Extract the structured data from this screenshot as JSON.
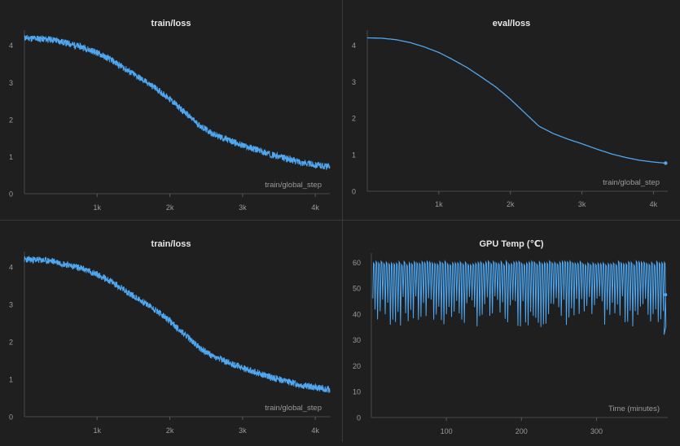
{
  "colors": {
    "line": "#4ea7f0",
    "axis": "#9a9a9a",
    "text": "#cfcfcf",
    "grid": "#2a2a2a",
    "bg": "#1f1f1f"
  },
  "chart_data": [
    {
      "id": "train-loss-top",
      "type": "line",
      "title": "train/loss",
      "xlabel": "train/global_step",
      "ylabel": "",
      "xlim": [
        0,
        4200
      ],
      "ylim": [
        0,
        4.3
      ],
      "xticks": [
        1000,
        2000,
        3000,
        4000
      ],
      "xtick_labels": [
        "1k",
        "2k",
        "3k",
        "4k"
      ],
      "yticks": [
        0,
        1,
        2,
        3,
        4
      ],
      "noise": 0.09,
      "series": [
        {
          "x": [
            0,
            200,
            400,
            600,
            800,
            1000,
            1200,
            1400,
            1600,
            1800,
            2000,
            2200,
            2400,
            2600,
            2800,
            3000,
            3200,
            3400,
            3600,
            3800,
            4000,
            4200
          ],
          "y": [
            4.2,
            4.18,
            4.15,
            4.05,
            3.95,
            3.8,
            3.6,
            3.35,
            3.1,
            2.85,
            2.55,
            2.2,
            1.85,
            1.6,
            1.45,
            1.3,
            1.18,
            1.05,
            0.95,
            0.85,
            0.78,
            0.72
          ]
        }
      ]
    },
    {
      "id": "eval-loss",
      "type": "line",
      "title": "eval/loss",
      "xlabel": "train/global_step",
      "ylabel": "",
      "xlim": [
        0,
        4200
      ],
      "ylim": [
        0,
        4.3
      ],
      "xticks": [
        1000,
        2000,
        3000,
        4000
      ],
      "xtick_labels": [
        "1k",
        "2k",
        "3k",
        "4k"
      ],
      "yticks": [
        0,
        1,
        2,
        3,
        4
      ],
      "noise": 0,
      "series": [
        {
          "x": [
            0,
            200,
            400,
            600,
            800,
            1000,
            1200,
            1400,
            1600,
            1800,
            2000,
            2200,
            2400,
            2600,
            2800,
            3000,
            3200,
            3400,
            3600,
            3800,
            4000,
            4170
          ],
          "y": [
            4.2,
            4.19,
            4.15,
            4.07,
            3.95,
            3.8,
            3.6,
            3.38,
            3.12,
            2.85,
            2.52,
            2.15,
            1.78,
            1.58,
            1.43,
            1.3,
            1.16,
            1.03,
            0.93,
            0.85,
            0.8,
            0.77
          ]
        }
      ]
    },
    {
      "id": "train-loss-bottom",
      "type": "line",
      "title": "train/loss",
      "xlabel": "train/global_step",
      "ylabel": "",
      "xlim": [
        0,
        4200
      ],
      "ylim": [
        0,
        4.3
      ],
      "xticks": [
        1000,
        2000,
        3000,
        4000
      ],
      "xtick_labels": [
        "1k",
        "2k",
        "3k",
        "4k"
      ],
      "yticks": [
        0,
        1,
        2,
        3,
        4
      ],
      "noise": 0.09,
      "series": [
        {
          "x": [
            0,
            200,
            400,
            600,
            800,
            1000,
            1200,
            1400,
            1600,
            1800,
            2000,
            2200,
            2400,
            2600,
            2800,
            3000,
            3200,
            3400,
            3600,
            3800,
            4000,
            4200
          ],
          "y": [
            4.2,
            4.18,
            4.15,
            4.05,
            3.95,
            3.8,
            3.6,
            3.35,
            3.1,
            2.85,
            2.55,
            2.2,
            1.85,
            1.6,
            1.45,
            1.3,
            1.18,
            1.05,
            0.95,
            0.85,
            0.78,
            0.72
          ]
        }
      ]
    },
    {
      "id": "gpu-temp",
      "type": "line",
      "title": "GPU Temp (℃)",
      "xlabel": "Time (minutes)",
      "ylabel": "",
      "xlim": [
        0,
        395
      ],
      "ylim": [
        0,
        62
      ],
      "xticks": [
        100,
        200,
        300
      ],
      "xtick_labels": [
        "100",
        "200",
        "300"
      ],
      "yticks": [
        0,
        10,
        20,
        30,
        40,
        50,
        60
      ],
      "oscillation": {
        "x_start": 2,
        "x_end": 392,
        "period_minutes": 3.4,
        "high": 60.5,
        "low_range": [
          35,
          47
        ]
      },
      "series": [
        {
          "end_x": 392,
          "end_y": 47.5
        }
      ]
    }
  ]
}
